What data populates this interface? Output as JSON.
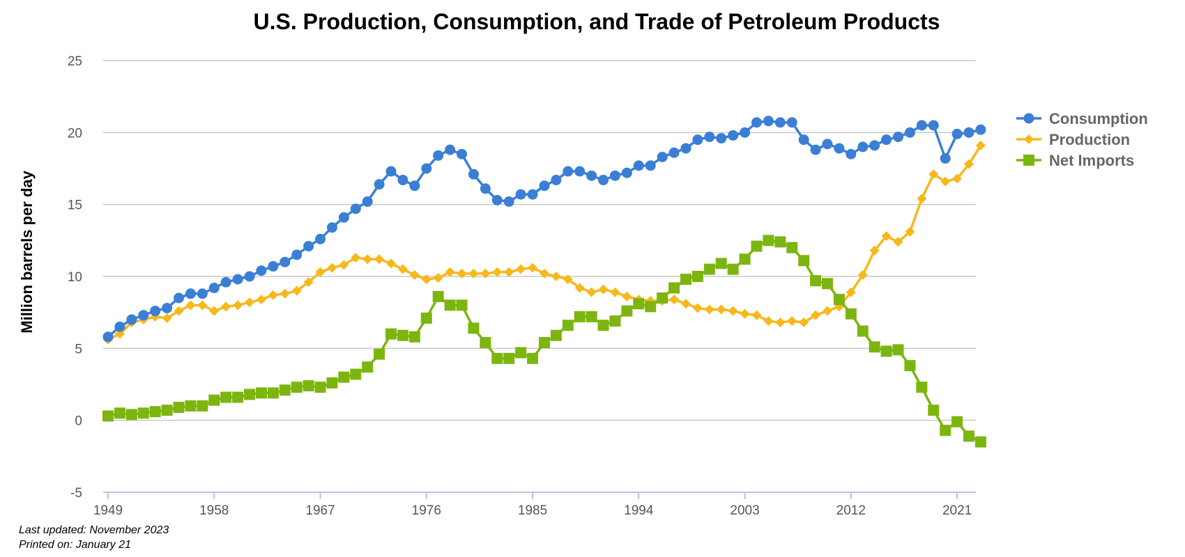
{
  "chart_data": {
    "type": "line",
    "title": "U.S. Production, Consumption, and Trade of Petroleum Products",
    "ylabel": "Million barrels per day",
    "xlabel": "",
    "ylim": [
      -5,
      25
    ],
    "yticks": [
      -5,
      0,
      5,
      10,
      15,
      20,
      25
    ],
    "xlim": [
      1949,
      2022
    ],
    "xticks": [
      1949,
      1958,
      1967,
      1976,
      1985,
      1994,
      2003,
      2012,
      2021
    ],
    "grid": true,
    "legend": "right",
    "series": [
      {
        "name": "Consumption",
        "color": "#3a7fd5",
        "marker": "circle",
        "values": [
          5.8,
          6.5,
          7.0,
          7.3,
          7.6,
          7.8,
          8.5,
          8.8,
          8.8,
          9.2,
          9.6,
          9.8,
          10.0,
          10.4,
          10.7,
          11.0,
          11.5,
          12.1,
          12.6,
          13.4,
          14.1,
          14.7,
          15.2,
          16.4,
          17.3,
          16.7,
          16.3,
          17.5,
          18.4,
          18.8,
          18.5,
          17.1,
          16.1,
          15.3,
          15.2,
          15.7,
          15.7,
          16.3,
          16.7,
          17.3,
          17.3,
          17.0,
          16.7,
          17.0,
          17.2,
          17.7,
          17.7,
          18.3,
          18.6,
          18.9,
          19.5,
          19.7,
          19.6,
          19.8,
          20.0,
          20.7,
          20.8,
          20.7,
          20.7,
          19.5,
          18.8,
          19.2,
          18.9,
          18.5,
          19.0,
          19.1,
          19.5,
          19.7,
          20.0,
          20.5,
          20.5,
          18.2,
          19.9,
          20.0,
          20.2
        ]
      },
      {
        "name": "Production",
        "color": "#f7b81c",
        "marker": "diamond",
        "values": [
          5.6,
          6.0,
          6.8,
          7.0,
          7.2,
          7.1,
          7.6,
          8.0,
          8.0,
          7.6,
          7.9,
          8.0,
          8.2,
          8.4,
          8.7,
          8.8,
          9.0,
          9.6,
          10.3,
          10.6,
          10.8,
          11.3,
          11.2,
          11.2,
          10.9,
          10.5,
          10.1,
          9.8,
          9.9,
          10.3,
          10.2,
          10.2,
          10.2,
          10.3,
          10.3,
          10.5,
          10.6,
          10.2,
          10.0,
          9.8,
          9.2,
          8.9,
          9.1,
          8.9,
          8.6,
          8.4,
          8.3,
          8.3,
          8.4,
          8.1,
          7.8,
          7.7,
          7.7,
          7.6,
          7.4,
          7.3,
          6.9,
          6.8,
          6.9,
          6.8,
          7.3,
          7.6,
          7.9,
          8.9,
          10.1,
          11.8,
          12.8,
          12.4,
          13.1,
          15.4,
          17.1,
          16.6,
          16.8,
          17.8,
          19.1
        ]
      },
      {
        "name": "Net Imports",
        "color": "#7cb50f",
        "marker": "square",
        "values": [
          0.3,
          0.5,
          0.4,
          0.5,
          0.6,
          0.7,
          0.9,
          1.0,
          1.0,
          1.4,
          1.6,
          1.6,
          1.8,
          1.9,
          1.9,
          2.1,
          2.3,
          2.4,
          2.3,
          2.6,
          3.0,
          3.2,
          3.7,
          4.6,
          6.0,
          5.9,
          5.8,
          7.1,
          8.6,
          8.0,
          8.0,
          6.4,
          5.4,
          4.3,
          4.3,
          4.7,
          4.3,
          5.4,
          5.9,
          6.6,
          7.2,
          7.2,
          6.6,
          6.9,
          7.6,
          8.1,
          7.9,
          8.5,
          9.2,
          9.8,
          10.0,
          10.5,
          10.9,
          10.5,
          11.2,
          12.1,
          12.5,
          12.4,
          12.0,
          11.1,
          9.7,
          9.5,
          8.4,
          7.4,
          6.2,
          5.1,
          4.8,
          4.9,
          3.8,
          2.3,
          0.7,
          -0.7,
          -0.1,
          -1.1,
          -1.5
        ]
      }
    ]
  },
  "footer": {
    "last_updated": "Last updated: November 2023",
    "printed_on": "Printed on: January 21"
  }
}
